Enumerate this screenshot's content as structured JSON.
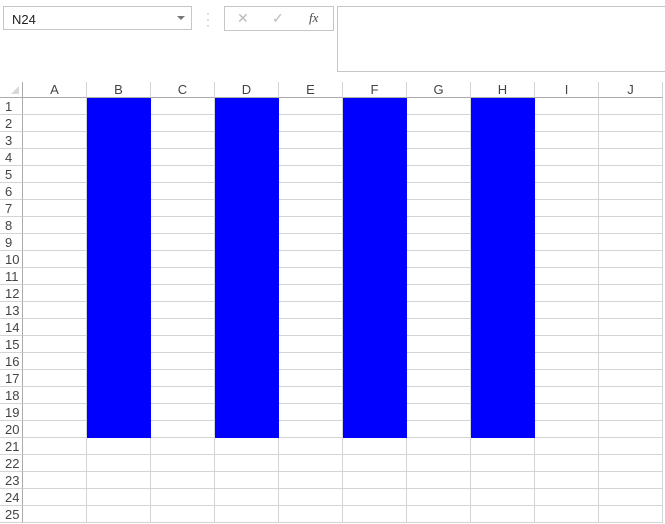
{
  "name_box": {
    "value": "N24"
  },
  "formula_bar": {
    "cancel_icon": "✕",
    "enter_icon": "✓",
    "fx_label": "fx",
    "value": ""
  },
  "columns": [
    "A",
    "B",
    "C",
    "D",
    "E",
    "F",
    "G",
    "H",
    "I",
    "J"
  ],
  "row_count": 25,
  "fill": {
    "color": "#0000ff",
    "columns": [
      "B",
      "D",
      "F",
      "H"
    ],
    "rows": "1-20"
  }
}
